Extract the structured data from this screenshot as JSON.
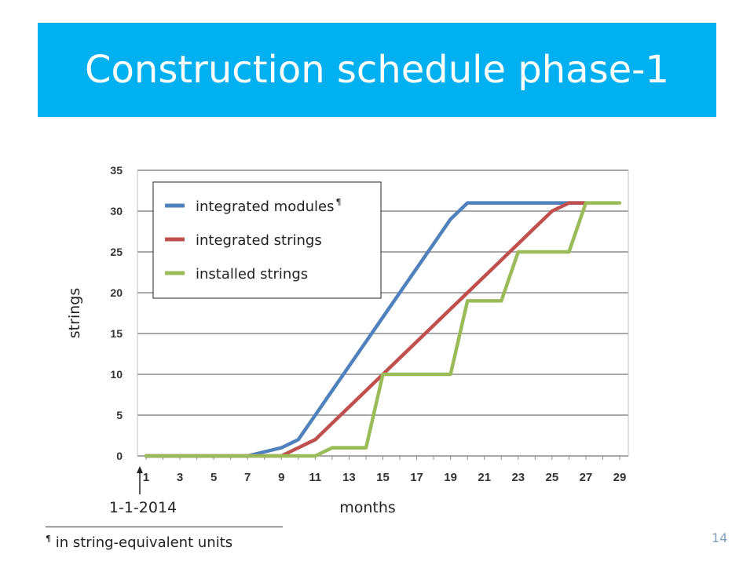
{
  "slide": {
    "title": "Construction schedule phase-1",
    "footnote_marker": "¶",
    "footnote_text": " in string-equivalent units",
    "slide_number": "14",
    "start_annotation": "1-1-2014",
    "title_bar_color": "#00b0f0"
  },
  "chart_data": {
    "type": "line",
    "xlabel": "months",
    "ylabel": "strings",
    "xlim": [
      1,
      29
    ],
    "ylim": [
      0,
      35
    ],
    "x_ticks": [
      1,
      3,
      5,
      7,
      9,
      11,
      13,
      15,
      17,
      19,
      21,
      23,
      25,
      27,
      29
    ],
    "y_ticks": [
      0,
      5,
      10,
      15,
      20,
      25,
      30,
      35
    ],
    "grid": true,
    "legend_position": "top-left",
    "series": [
      {
        "name": "integrated modules",
        "superscript": "¶",
        "color": "#4f81bd",
        "points": [
          [
            1,
            0
          ],
          [
            7,
            0
          ],
          [
            9,
            1
          ],
          [
            10,
            2
          ],
          [
            11,
            5
          ],
          [
            12,
            8
          ],
          [
            13,
            11
          ],
          [
            14,
            14
          ],
          [
            15,
            17
          ],
          [
            16,
            20
          ],
          [
            17,
            23
          ],
          [
            18,
            26
          ],
          [
            19,
            29
          ],
          [
            20,
            31
          ],
          [
            27,
            31
          ]
        ]
      },
      {
        "name": "integrated strings",
        "superscript": "",
        "color": "#c0504d",
        "points": [
          [
            1,
            0
          ],
          [
            9,
            0
          ],
          [
            11,
            2
          ],
          [
            12,
            4
          ],
          [
            13,
            6
          ],
          [
            14,
            8
          ],
          [
            15,
            10
          ],
          [
            16,
            12
          ],
          [
            17,
            14
          ],
          [
            18,
            16
          ],
          [
            19,
            18
          ],
          [
            20,
            20
          ],
          [
            21,
            22
          ],
          [
            22,
            24
          ],
          [
            23,
            26
          ],
          [
            24,
            28
          ],
          [
            25,
            30
          ],
          [
            26,
            31
          ],
          [
            27,
            31
          ]
        ]
      },
      {
        "name": "installed strings",
        "superscript": "",
        "color": "#9bbb59",
        "points": [
          [
            1,
            0
          ],
          [
            11,
            0
          ],
          [
            12,
            1
          ],
          [
            14,
            1
          ],
          [
            15,
            10
          ],
          [
            19,
            10
          ],
          [
            20,
            19
          ],
          [
            21,
            19
          ],
          [
            22,
            19
          ],
          [
            23,
            25
          ],
          [
            26,
            25
          ],
          [
            27,
            31
          ],
          [
            29,
            31
          ]
        ]
      }
    ]
  }
}
